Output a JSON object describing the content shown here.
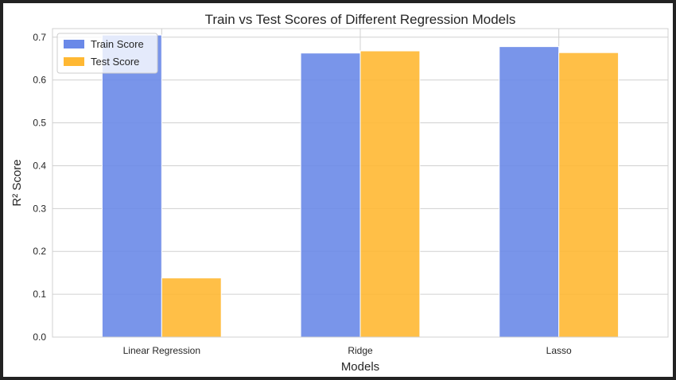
{
  "chart_data": {
    "type": "bar",
    "title": "Train vs Test Scores of Different Regression Models",
    "xlabel": "Models",
    "ylabel": "R² Score",
    "categories": [
      "Linear Regression",
      "Ridge",
      "Lasso"
    ],
    "series": [
      {
        "name": "Train Score",
        "values": [
          0.705,
          0.663,
          0.678
        ]
      },
      {
        "name": "Test Score",
        "values": [
          0.138,
          0.668,
          0.664
        ]
      }
    ],
    "ylim": [
      0,
      0.72
    ],
    "yticks": [
      "0.0",
      "0.1",
      "0.2",
      "0.3",
      "0.4",
      "0.5",
      "0.6",
      "0.7"
    ],
    "grid": true,
    "legend_position": "top-left",
    "colors": {
      "Train Score": "#6a89e8",
      "Test Score": "#ffb833"
    }
  }
}
